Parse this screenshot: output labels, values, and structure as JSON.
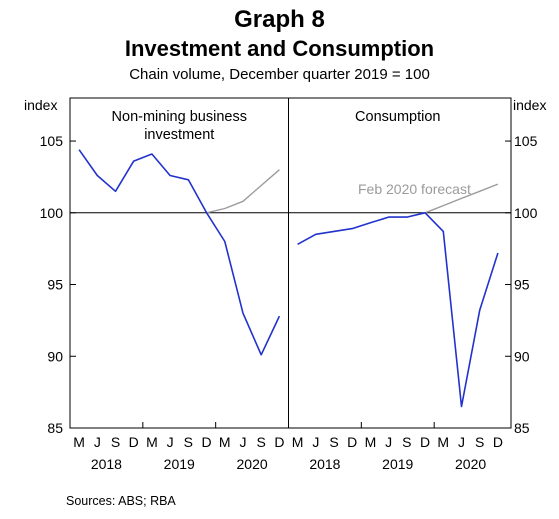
{
  "graph_number": "Graph 8",
  "subtitle": "Chain volume, December quarter 2019 = 100",
  "source": "Sources: ABS; RBA",
  "colors": {
    "actual": "#2233cc",
    "forecast": "#9b9b9b",
    "axis": "#000000"
  },
  "chart_data": {
    "type": "line",
    "title": "Investment and Consumption",
    "ylabel_left": "index",
    "ylabel_right": "index",
    "ylim": [
      85,
      108
    ],
    "yticks": [
      85,
      90,
      95,
      100,
      105
    ],
    "reference_line": 100,
    "x_tick_labels": [
      "M",
      "J",
      "S",
      "D",
      "M",
      "J",
      "S",
      "D",
      "M",
      "J",
      "S",
      "D"
    ],
    "x_quarters": [
      "Mar 2018",
      "Jun 2018",
      "Sep 2018",
      "Dec 2018",
      "Mar 2019",
      "Jun 2019",
      "Sep 2019",
      "Dec 2019",
      "Mar 2020",
      "Jun 2020",
      "Sep 2020",
      "Dec 2020"
    ],
    "year_labels": [
      "2018",
      "2019",
      "2020"
    ],
    "forecast_label": "Feb 2020 forecast",
    "panels": [
      {
        "title_lines": [
          "Non-mining business",
          "investment"
        ],
        "series": [
          {
            "name": "actual",
            "start_index": 0,
            "values": [
              104.4,
              102.6,
              101.5,
              103.6,
              104.1,
              102.6,
              102.3,
              100.0,
              98.0,
              93.0,
              90.1,
              92.8
            ]
          },
          {
            "name": "Feb 2020 forecast",
            "start_index": 7,
            "values": [
              100.0,
              100.3,
              100.8,
              101.9,
              103.0
            ]
          }
        ]
      },
      {
        "title_lines": [
          "Consumption"
        ],
        "series": [
          {
            "name": "actual",
            "start_index": 0,
            "values": [
              97.8,
              98.5,
              98.7,
              98.9,
              99.3,
              99.7,
              99.7,
              100.0,
              98.7,
              86.5,
              93.2,
              97.2
            ]
          },
          {
            "name": "Feb 2020 forecast",
            "start_index": 7,
            "values": [
              100.0,
              100.5,
              101.0,
              101.5,
              102.0
            ]
          }
        ]
      }
    ]
  }
}
